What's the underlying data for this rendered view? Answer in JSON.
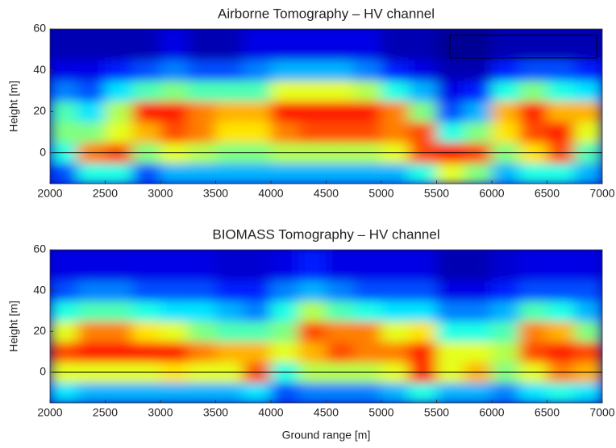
{
  "chart_data": [
    {
      "type": "heatmap",
      "title": "Airborne Tomography – HV channel",
      "ylabel": "Height [m]",
      "xlim": [
        2000,
        7000
      ],
      "ylim": [
        -15,
        60
      ],
      "xticks": [
        2000,
        2500,
        3000,
        3500,
        4000,
        4500,
        5000,
        5500,
        6000,
        6500,
        7000
      ],
      "yticks": [
        0,
        20,
        40,
        60
      ],
      "xbins": [
        2000,
        2250,
        2500,
        2750,
        3000,
        3250,
        3500,
        3750,
        4000,
        4250,
        4500,
        4750,
        5000,
        5250,
        5500,
        5750,
        6000,
        6250,
        6500,
        6750,
        7000
      ],
      "ybins": [
        -15,
        -5,
        5,
        15,
        25,
        35,
        45,
        60
      ],
      "colormap": "jet",
      "hline": 0,
      "hline_color": "#000000",
      "box": {
        "x": [
          5620,
          6950
        ],
        "y": [
          46,
          57
        ]
      },
      "z": [
        [
          0.2,
          0.4,
          0.4,
          0.2,
          0.3,
          0.3,
          0.3,
          0.3,
          0.3,
          0.3,
          0.3,
          0.3,
          0.3,
          0.4,
          0.6,
          0.5,
          0.3,
          0.4,
          0.4,
          0.3
        ],
        [
          0.4,
          0.75,
          0.8,
          0.5,
          0.6,
          0.55,
          0.5,
          0.5,
          0.55,
          0.55,
          0.55,
          0.55,
          0.6,
          0.8,
          0.85,
          0.8,
          0.5,
          0.65,
          0.8,
          0.45
        ],
        [
          0.5,
          0.5,
          0.6,
          0.7,
          0.8,
          0.75,
          0.65,
          0.65,
          0.75,
          0.8,
          0.8,
          0.8,
          0.75,
          0.8,
          0.4,
          0.5,
          0.65,
          0.8,
          0.85,
          0.6
        ],
        [
          0.45,
          0.35,
          0.55,
          0.85,
          0.85,
          0.75,
          0.7,
          0.7,
          0.85,
          0.85,
          0.85,
          0.85,
          0.75,
          0.5,
          0.2,
          0.3,
          0.7,
          0.85,
          0.7,
          0.7
        ],
        [
          0.25,
          0.2,
          0.35,
          0.45,
          0.5,
          0.45,
          0.45,
          0.45,
          0.6,
          0.6,
          0.6,
          0.55,
          0.4,
          0.3,
          0.1,
          0.15,
          0.4,
          0.5,
          0.4,
          0.35
        ],
        [
          0.1,
          0.1,
          0.15,
          0.2,
          0.25,
          0.2,
          0.2,
          0.25,
          0.3,
          0.3,
          0.3,
          0.25,
          0.15,
          0.1,
          0.05,
          0.05,
          0.15,
          0.2,
          0.2,
          0.15
        ],
        [
          0.05,
          0.05,
          0.05,
          0.05,
          0.1,
          0.05,
          0.05,
          0.1,
          0.1,
          0.1,
          0.1,
          0.1,
          0.05,
          0.05,
          0.02,
          0.02,
          0.05,
          0.05,
          0.05,
          0.05
        ]
      ]
    },
    {
      "type": "heatmap",
      "title": "BIOMASS Tomography – HV channel",
      "ylabel": "Height [m]",
      "xlabel": "Ground range [m]",
      "xlim": [
        2000,
        7000
      ],
      "ylim": [
        -15,
        60
      ],
      "xticks": [
        2000,
        2500,
        3000,
        3500,
        4000,
        4500,
        5000,
        5500,
        6000,
        6500,
        7000
      ],
      "yticks": [
        0,
        20,
        40,
        60
      ],
      "xbins": [
        2000,
        2250,
        2500,
        2750,
        3000,
        3250,
        3500,
        3750,
        4000,
        4250,
        4500,
        4750,
        5000,
        5250,
        5500,
        5750,
        6000,
        6250,
        6500,
        6750,
        7000
      ],
      "ybins": [
        -15,
        -5,
        5,
        15,
        25,
        35,
        45,
        60
      ],
      "colormap": "jet",
      "hline": 0,
      "hline_color": "#000000",
      "z": [
        [
          0.35,
          0.3,
          0.3,
          0.3,
          0.3,
          0.3,
          0.3,
          0.35,
          0.2,
          0.25,
          0.25,
          0.25,
          0.3,
          0.4,
          0.3,
          0.3,
          0.25,
          0.35,
          0.4,
          0.35
        ],
        [
          0.6,
          0.6,
          0.6,
          0.6,
          0.65,
          0.6,
          0.6,
          0.8,
          0.4,
          0.55,
          0.55,
          0.55,
          0.6,
          0.85,
          0.6,
          0.7,
          0.5,
          0.6,
          0.75,
          0.7
        ],
        [
          0.8,
          0.85,
          0.85,
          0.85,
          0.85,
          0.75,
          0.7,
          0.7,
          0.6,
          0.7,
          0.8,
          0.75,
          0.75,
          0.85,
          0.6,
          0.6,
          0.55,
          0.8,
          0.85,
          0.8
        ],
        [
          0.6,
          0.75,
          0.75,
          0.65,
          0.6,
          0.5,
          0.45,
          0.45,
          0.5,
          0.8,
          0.75,
          0.75,
          0.6,
          0.65,
          0.4,
          0.4,
          0.45,
          0.75,
          0.7,
          0.5
        ],
        [
          0.4,
          0.45,
          0.45,
          0.4,
          0.35,
          0.35,
          0.3,
          0.25,
          0.4,
          0.55,
          0.45,
          0.4,
          0.35,
          0.35,
          0.25,
          0.25,
          0.3,
          0.45,
          0.4,
          0.3
        ],
        [
          0.2,
          0.25,
          0.25,
          0.2,
          0.2,
          0.2,
          0.15,
          0.15,
          0.25,
          0.3,
          0.25,
          0.2,
          0.2,
          0.2,
          0.1,
          0.1,
          0.15,
          0.2,
          0.2,
          0.2
        ],
        [
          0.1,
          0.1,
          0.1,
          0.1,
          0.1,
          0.1,
          0.08,
          0.08,
          0.1,
          0.15,
          0.1,
          0.1,
          0.1,
          0.1,
          0.05,
          0.05,
          0.08,
          0.1,
          0.1,
          0.1
        ]
      ]
    }
  ]
}
